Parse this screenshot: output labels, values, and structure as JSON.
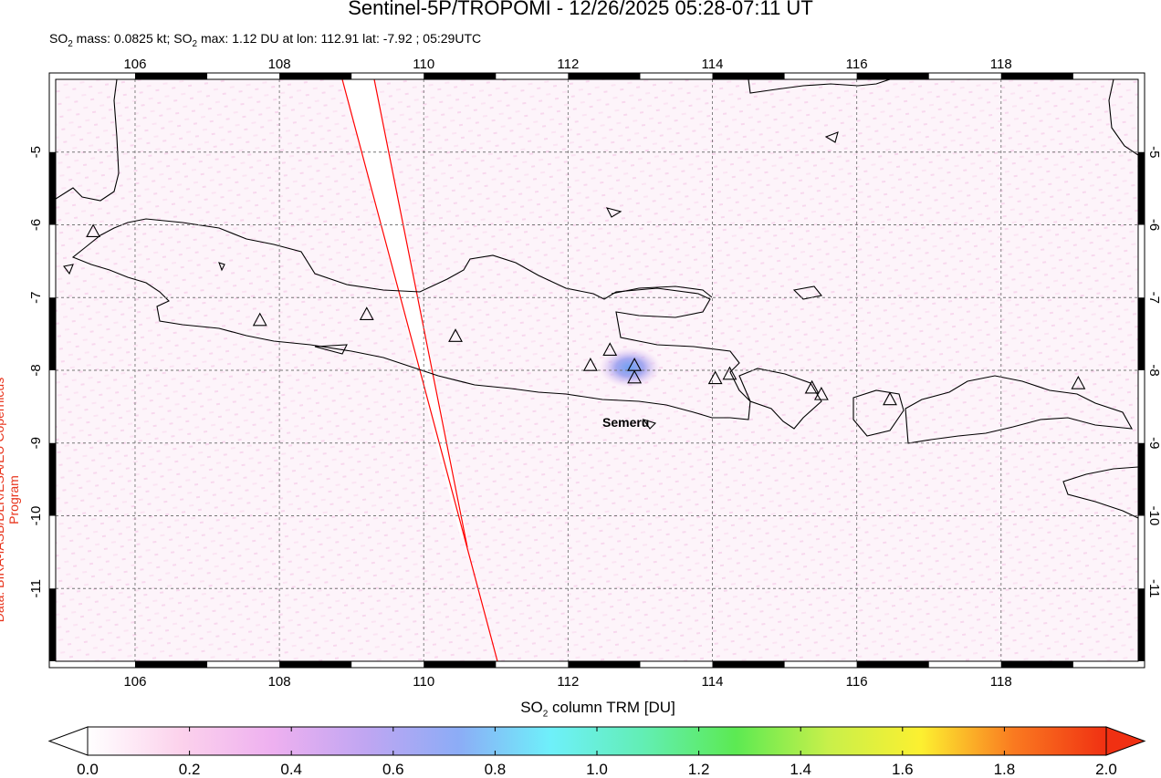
{
  "header": {
    "title": "Sentinel-5P/TROPOMI - 12/26/2025 05:28-07:11 UT",
    "sub_a": "SO",
    "sub_b": "2",
    "sub_c": " mass: 0.0825 kt; SO",
    "sub_d": "2",
    "sub_e": " max: 1.12 DU at lon: 112.91 lat: -7.92 ; 05:29UTC"
  },
  "credit": "Data: BIRA-IASB/DLR/ESA/EU Copernicus Program",
  "map": {
    "lon_ticks": [
      "106",
      "108",
      "110",
      "112",
      "114",
      "116",
      "118"
    ],
    "lon_values": [
      106,
      108,
      110,
      112,
      114,
      116,
      118
    ],
    "lat_ticks": [
      "-5",
      "-6",
      "-7",
      "-8",
      "-9",
      "-10",
      "-11"
    ],
    "lat_values": [
      -5,
      -6,
      -7,
      -8,
      -9,
      -10,
      -11
    ],
    "lon_range": [
      104.9,
      119.9
    ],
    "lat_range": [
      -12.0,
      -4.0
    ],
    "volcano_label": "Semeru",
    "volcanoes": [
      {
        "lon": 105.42,
        "lat": -6.1
      },
      {
        "lon": 107.73,
        "lat": -7.32
      },
      {
        "lon": 109.21,
        "lat": -7.24
      },
      {
        "lon": 110.44,
        "lat": -7.54
      },
      {
        "lon": 112.31,
        "lat": -7.94
      },
      {
        "lon": 112.58,
        "lat": -7.73
      },
      {
        "lon": 112.92,
        "lat": -7.94
      },
      {
        "lon": 112.92,
        "lat": -8.11
      },
      {
        "lon": 114.04,
        "lat": -8.12
      },
      {
        "lon": 114.24,
        "lat": -8.06
      },
      {
        "lon": 115.38,
        "lat": -8.25
      },
      {
        "lon": 115.51,
        "lat": -8.34
      },
      {
        "lon": 116.46,
        "lat": -8.41
      },
      {
        "lon": 119.07,
        "lat": -8.19
      }
    ]
  },
  "colorbar": {
    "label_a": "SO",
    "label_b": "2",
    "label_c": " column TRM [DU]",
    "ticks": [
      "0.0",
      "0.2",
      "0.4",
      "0.6",
      "0.8",
      "1.0",
      "1.2",
      "1.4",
      "1.6",
      "1.8",
      "2.0"
    ],
    "range": [
      0.0,
      2.0
    ],
    "colors": [
      "#ffffff",
      "#fcd2ec",
      "#eeb0f0",
      "#c0a6f2",
      "#8cacf6",
      "#6ef0fa",
      "#62eeb4",
      "#5cea52",
      "#c8f04a",
      "#fcf030",
      "#fa7a20",
      "#f03012"
    ]
  }
}
